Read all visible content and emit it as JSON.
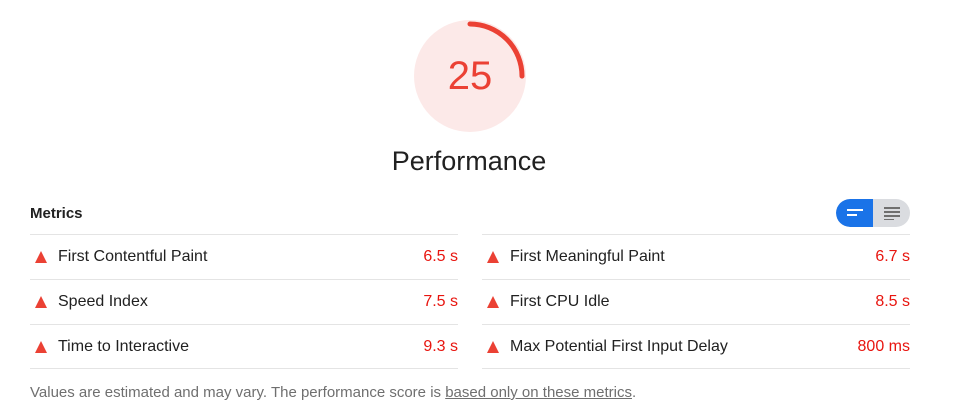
{
  "score": {
    "value": "25",
    "fraction": 0.25,
    "color": "#eb4134",
    "track_color": "#fce9e8"
  },
  "category_title": "Performance",
  "metrics": {
    "header": "Metrics",
    "toggle": {
      "opportunity_view_icon": "compact-lines-icon",
      "full_view_icon": "expanded-lines-icon",
      "active": "compact"
    },
    "left": [
      {
        "label": "First Contentful Paint",
        "value": "6.5 s",
        "status": "fail"
      },
      {
        "label": "Speed Index",
        "value": "7.5 s",
        "status": "fail"
      },
      {
        "label": "Time to Interactive",
        "value": "9.3 s",
        "status": "fail"
      }
    ],
    "right": [
      {
        "label": "First Meaningful Paint",
        "value": "6.7 s",
        "status": "fail"
      },
      {
        "label": "First CPU Idle",
        "value": "8.5 s",
        "status": "fail"
      },
      {
        "label": "Max Potential First Input Delay",
        "value": "800 ms",
        "status": "fail"
      }
    ]
  },
  "footnote": {
    "text": "Values are estimated and may vary. The performance score is ",
    "link": "based only on these metrics",
    "suffix": "."
  },
  "fail_color": "#eb4134"
}
